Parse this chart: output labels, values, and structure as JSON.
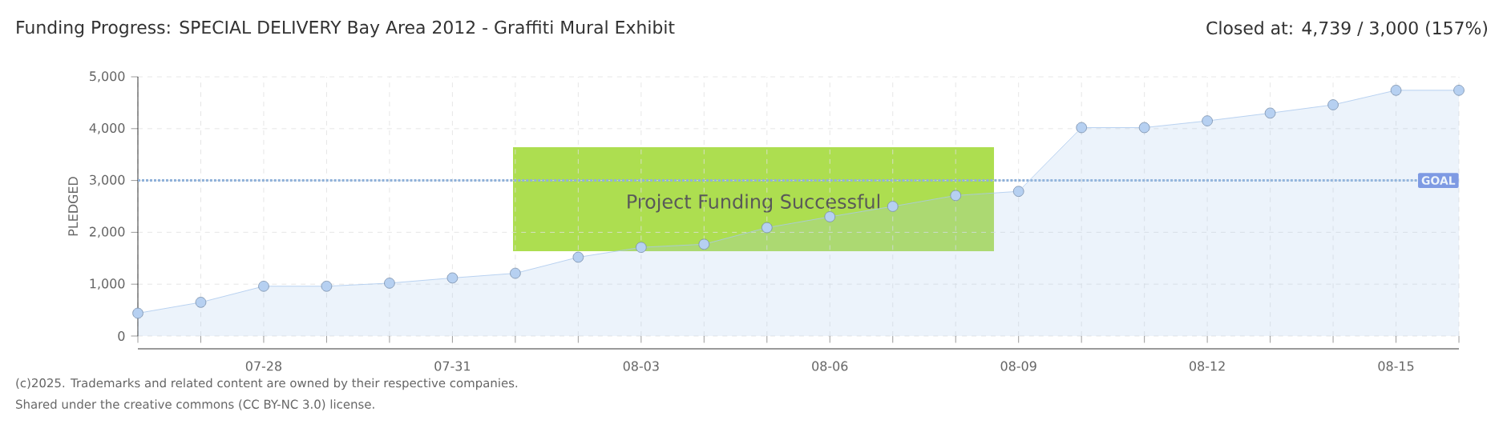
{
  "chart_data": {
    "type": "area",
    "title": "Funding Progress: SPECIAL DELIVERY Bay Area 2012 - Graffiti Mural Exhibit",
    "subtitle": "Closed at:  4,739 /  3,000 (157%)",
    "ylabel": "PLEDGED",
    "categories": [
      null,
      null,
      "07-28",
      null,
      null,
      "07-31",
      null,
      null,
      "08-03",
      null,
      null,
      "08-06",
      null,
      null,
      "08-09",
      null,
      null,
      "08-12",
      null,
      null,
      "08-15",
      null
    ],
    "series": [
      {
        "color": "#a9c8ee",
        "values": [
          440,
          650,
          960,
          960,
          1020,
          1120,
          1210,
          1520,
          1710,
          1770,
          2090,
          2300,
          2500,
          2710,
          2790,
          4020,
          4020,
          4150,
          4300,
          4460,
          4740,
          4740
        ]
      }
    ],
    "ylim": [
      0,
      5000
    ],
    "yticks": [
      0,
      {
        "value": 1000,
        "label": "1,000"
      },
      {
        "value": 2000,
        "label": "2,000"
      },
      {
        "value": 3000,
        "label": "3,000"
      },
      {
        "value": 4000,
        "label": "4,000"
      },
      {
        "value": 5000,
        "label": "5,000"
      }
    ],
    "grid": true,
    "marker": "circle",
    "ref_lines": [
      {
        "axis": "y",
        "value": 3000,
        "label": "GOAL",
        "color": "#8fb1d9",
        "line_style": "dotted"
      }
    ],
    "annotations": [
      "Project Funding Successful",
      "(c)2025. Trademarks and related content are owned by their respective companies.",
      "Shared under the creative commons (CC BY-NC 3.0) license."
    ]
  }
}
